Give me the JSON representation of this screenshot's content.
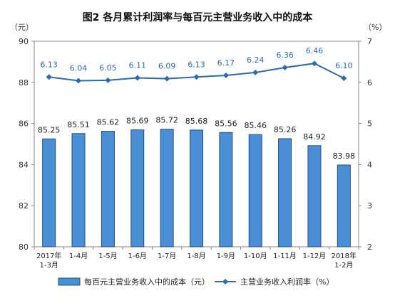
{
  "chart_data": {
    "type": "bar",
    "title": "图2  各月累计利润率与每百元主营业务收入中的成本",
    "left_unit": "（元）",
    "right_unit": "（%）",
    "categories": [
      "2017年\n1-3月",
      "1-4月",
      "1-5月",
      "1-6月",
      "1-7月",
      "1-8月",
      "1-9月",
      "1-10月",
      "1-11月",
      "1-12月",
      "2018年\n1-2月"
    ],
    "series": [
      {
        "name": "每百元主营业务收入中的成本（元）",
        "type": "bar",
        "axis": "left",
        "color": "#4a8fd6",
        "values": [
          85.25,
          85.51,
          85.62,
          85.69,
          85.72,
          85.68,
          85.56,
          85.46,
          85.26,
          84.92,
          83.98
        ]
      },
      {
        "name": "主营业务收入利润率（%）",
        "type": "line",
        "axis": "right",
        "color": "#2a6ab4",
        "values": [
          6.13,
          6.04,
          6.05,
          6.11,
          6.09,
          6.13,
          6.17,
          6.24,
          6.36,
          6.46,
          6.1
        ]
      }
    ],
    "y_left": {
      "min": 80,
      "max": 90,
      "ticks": [
        80,
        82,
        84,
        86,
        88,
        90
      ]
    },
    "y_right": {
      "min": 2,
      "max": 7,
      "ticks": [
        2,
        3,
        4,
        5,
        6,
        7
      ]
    },
    "legend_position": "bottom",
    "grid": false
  }
}
